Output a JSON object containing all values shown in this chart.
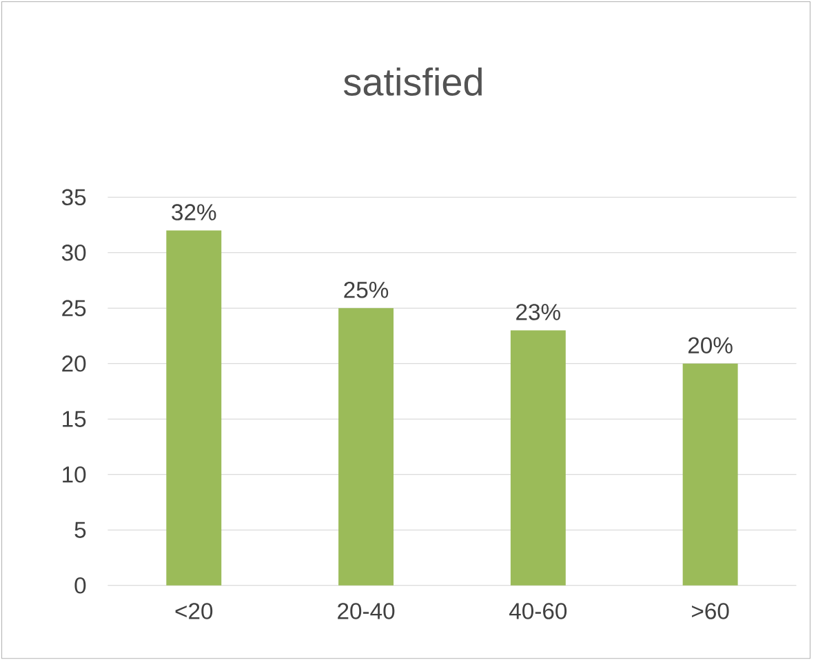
{
  "chart_data": {
    "type": "bar",
    "title": "satisfied",
    "categories": [
      "<20",
      "20-40",
      "40-60",
      ">60"
    ],
    "values": [
      32,
      25,
      23,
      20
    ],
    "value_labels": [
      "32%",
      "25%",
      "23%",
      "20%"
    ],
    "color": "#9bbb59",
    "ylim": [
      0,
      35
    ],
    "yticks": [
      0,
      5,
      10,
      15,
      20,
      25,
      30,
      35
    ],
    "grid": "y"
  }
}
